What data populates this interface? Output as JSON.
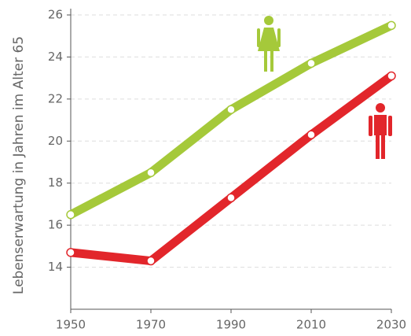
{
  "chart_data": {
    "type": "line",
    "y_label": "Lebenserwartung in Jahren im Alter 65",
    "x": [
      1950,
      1970,
      1990,
      2010,
      2030
    ],
    "series": [
      {
        "color": "#a5c93a",
        "values": [
          16.5,
          18.5,
          21.5,
          23.7,
          25.5
        ]
      },
      {
        "color": "#e2262b",
        "values": [
          14.7,
          14.3,
          17.3,
          20.3,
          23.1
        ]
      }
    ],
    "xlim": [
      1950,
      2030
    ],
    "xticks": [
      1950,
      1970,
      1990,
      2010,
      2030
    ],
    "ylim": [
      12,
      26
    ],
    "yticks": [
      14,
      16,
      18,
      20,
      22,
      24,
      26
    ],
    "grid": true
  }
}
